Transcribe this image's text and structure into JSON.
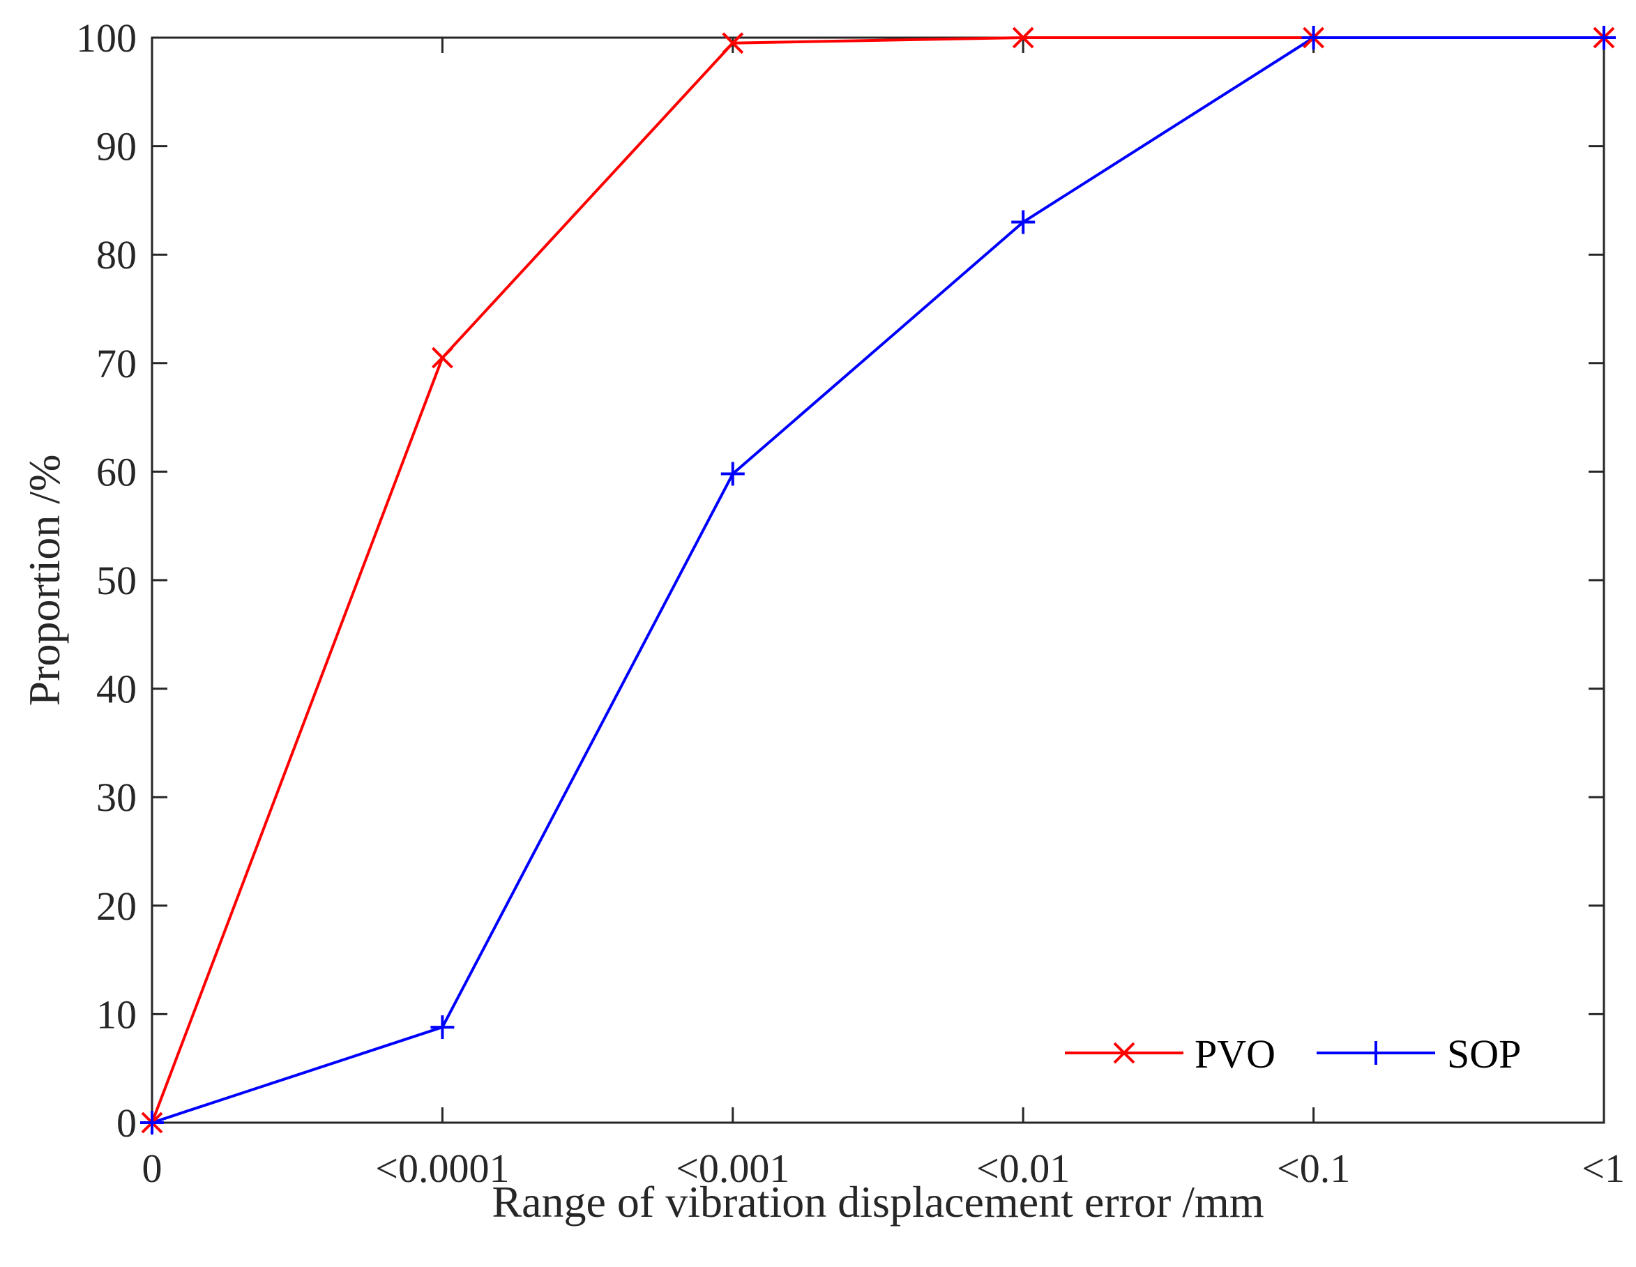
{
  "chart_data": {
    "type": "line",
    "categories": [
      "0",
      "<0.0001",
      "<0.001",
      "<0.01",
      "<0.1",
      "<1"
    ],
    "xlabel": "Range of vibration displacement error /mm",
    "ylabel": "Proportion /%",
    "ylim": [
      0,
      100
    ],
    "yticks": [
      0,
      10,
      20,
      30,
      40,
      50,
      60,
      70,
      80,
      90,
      100
    ],
    "grid": false,
    "legend_position": "bottom-right",
    "series": [
      {
        "name": "PVO",
        "color": "#ff0000",
        "marker": "x",
        "values": [
          0,
          70.5,
          99.5,
          100,
          100,
          100
        ]
      },
      {
        "name": "SOP",
        "color": "#0000ff",
        "marker": "+",
        "values": [
          0,
          8.8,
          59.8,
          83,
          100,
          100
        ]
      }
    ]
  }
}
